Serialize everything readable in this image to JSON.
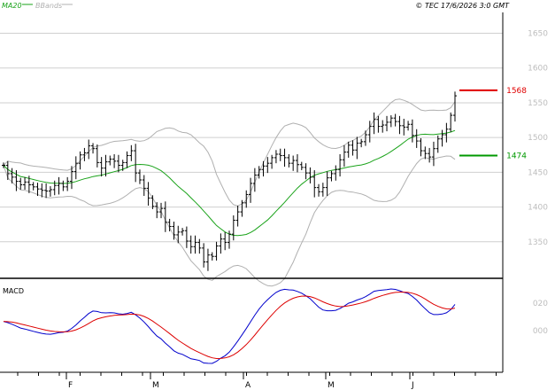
{
  "header": {
    "legend": [
      {
        "label": "MA20",
        "color": "#1aa31a"
      },
      {
        "label": "BBands",
        "color": "#b0b0b0"
      }
    ],
    "copyright": "© TEC 17/6/2026 3:0 GMT"
  },
  "chart_data": [
    {
      "type": "ohlc",
      "ylim": [
        1300,
        1680
      ],
      "yticks": [
        "1650",
        "1600",
        "1550",
        "1500",
        "1450",
        "1400",
        "1350"
      ],
      "ytick_values": [
        1650,
        1600,
        1550,
        1500,
        1450,
        1400,
        1350
      ],
      "x_months": [
        "F",
        "M",
        "A",
        "M",
        "J"
      ],
      "levels": [
        {
          "label": "1568",
          "value": 1568,
          "color": "#e00000"
        },
        {
          "label": "1474",
          "value": 1474,
          "color": "#009900"
        }
      ],
      "close_start": 1460,
      "close_changes": [
        -12,
        -5,
        -6,
        -5,
        4,
        -4,
        -3,
        -3,
        -2,
        -1,
        2,
        6,
        3,
        -5,
        8,
        14,
        12,
        12,
        3,
        10,
        -4,
        -20,
        -8,
        9,
        4,
        -3,
        -6,
        4,
        10,
        7,
        -32,
        -10,
        -12,
        -14,
        -12,
        -8,
        5,
        -20,
        -6,
        -12,
        4,
        2,
        -15,
        -8,
        6,
        -8,
        -20,
        10,
        -2,
        15,
        10,
        -5,
        12,
        20,
        12,
        13,
        12,
        16,
        12,
        8,
        5,
        4,
        8,
        5,
        -2,
        -3,
        -8,
        4,
        -6,
        -4,
        -8,
        -6,
        -15,
        -6,
        6,
        14,
        6,
        6,
        14,
        11,
        10,
        -7,
        10,
        2,
        10,
        12,
        10,
        -10,
        2,
        4,
        6,
        -5,
        -6,
        -2,
        4,
        -16,
        -8,
        -14,
        -4,
        -5,
        12,
        14,
        6,
        8,
        20,
        28
      ],
      "series": [
        {
          "name": "MA20",
          "color": "#1aa31a"
        },
        {
          "name": "BBands",
          "color": "#b0b0b0"
        }
      ]
    },
    {
      "type": "line",
      "panel_label": "MACD",
      "yticks": [
        "020",
        "000"
      ],
      "ytick_values": [
        20,
        0
      ],
      "x_months": [
        "F",
        "M",
        "A",
        "M",
        "J"
      ],
      "series": [
        {
          "name": "MACD",
          "color": "#0000cc"
        },
        {
          "name": "Signal",
          "color": "#dd0000"
        }
      ]
    }
  ]
}
